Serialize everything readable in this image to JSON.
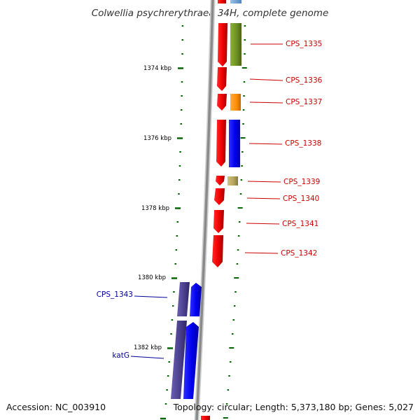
{
  "title": "Colwellia psychrerythraea 34H, complete genome",
  "footer": {
    "accession": "Accession: NC_003910",
    "summary": "Topology: circular; Length: 5,373,180 bp; Genes: 5,027"
  },
  "scale": {
    "ticks": [
      {
        "label": "1374 kbp"
      },
      {
        "label": "1376 kbp"
      },
      {
        "label": "1378 kbp"
      },
      {
        "label": "1380 kbp"
      },
      {
        "label": "1382 kbp"
      }
    ]
  },
  "genes": [
    {
      "label": "CPS_1335",
      "color": "#cc0000"
    },
    {
      "label": "CPS_1336",
      "color": "#cc0000"
    },
    {
      "label": "CPS_1337",
      "color": "#cc0000"
    },
    {
      "label": "CPS_1338",
      "color": "#cc0000"
    },
    {
      "label": "CPS_1339",
      "color": "#cc0000"
    },
    {
      "label": "CPS_1340",
      "color": "#cc0000"
    },
    {
      "label": "CPS_1341",
      "color": "#cc0000"
    },
    {
      "label": "CPS_1342",
      "color": "#cc0000"
    },
    {
      "label": "CPS_1343",
      "color": "#000099"
    },
    {
      "label": "katG",
      "color": "#000099"
    }
  ],
  "colors": {
    "forward_strand": "#ff0000",
    "reverse_strand": "#0000ff",
    "cog_olive": "#6b8e23",
    "cog_orange": "#ff8c00",
    "cog_blue": "#0000ee",
    "cog_khaki": "#b5a55a",
    "cog_indigo": "#483d8b",
    "backbone": "#888888",
    "tick_marks": "#006600"
  }
}
